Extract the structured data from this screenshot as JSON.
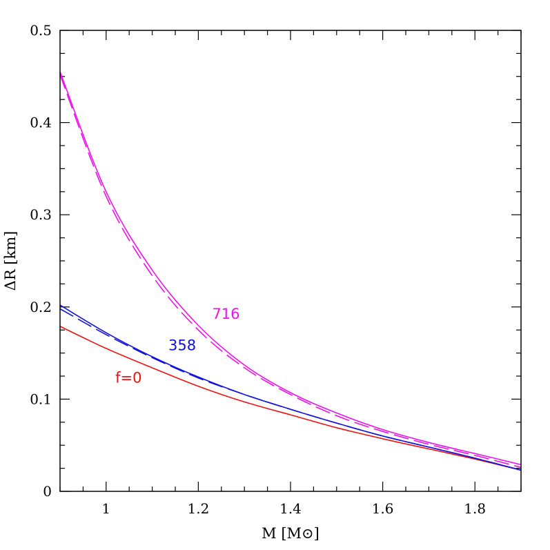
{
  "chart_data": {
    "type": "line",
    "xlabel": "M [M⊙]",
    "ylabel": "ΔR [km]",
    "xlim": [
      0.9,
      1.9
    ],
    "ylim": [
      0,
      0.5
    ],
    "x_ticks": [
      "1",
      "1.2",
      "1.4",
      "1.6",
      "1.8"
    ],
    "y_ticks": [
      "0",
      "0.1",
      "0.2",
      "0.3",
      "0.4",
      "0.5"
    ],
    "grid": false,
    "legend": "none; curves labeled inline",
    "x": [
      0.9,
      1.0,
      1.1,
      1.2,
      1.3,
      1.4,
      1.5,
      1.6,
      1.7,
      1.8,
      1.9
    ],
    "series": [
      {
        "name": "f=0",
        "color": "#ee1111",
        "style": "solid",
        "values": [
          0.179,
          0.155,
          0.134,
          0.114,
          0.097,
          0.083,
          0.069,
          0.057,
          0.046,
          0.035,
          0.023
        ]
      },
      {
        "name": "358",
        "color": "#1111dd",
        "style": "solid",
        "values": [
          0.202,
          0.172,
          0.146,
          0.124,
          0.105,
          0.089,
          0.074,
          0.06,
          0.048,
          0.036,
          0.023
        ]
      },
      {
        "name": "",
        "color": "#1111dd",
        "style": "dashed",
        "values": [
          0.198,
          0.17,
          0.145,
          0.123,
          0.105,
          0.089,
          0.074,
          0.06,
          0.048,
          0.036,
          0.023
        ]
      },
      {
        "name": "716",
        "color": "#ee11ee",
        "style": "solid",
        "values": [
          0.455,
          0.325,
          0.24,
          0.18,
          0.137,
          0.107,
          0.085,
          0.067,
          0.053,
          0.041,
          0.029
        ]
      },
      {
        "name": "",
        "color": "#ee11ee",
        "style": "dashed",
        "values": [
          0.452,
          0.32,
          0.234,
          0.175,
          0.134,
          0.105,
          0.082,
          0.065,
          0.051,
          0.039,
          0.026
        ]
      }
    ],
    "annotations": [
      {
        "text": "f=0",
        "x": 1.02,
        "y": 0.118,
        "color": "#ee1111"
      },
      {
        "text": "358",
        "x": 1.135,
        "y": 0.153,
        "color": "#1111dd"
      },
      {
        "text": "716",
        "x": 1.23,
        "y": 0.187,
        "color": "#ee11ee"
      }
    ]
  }
}
